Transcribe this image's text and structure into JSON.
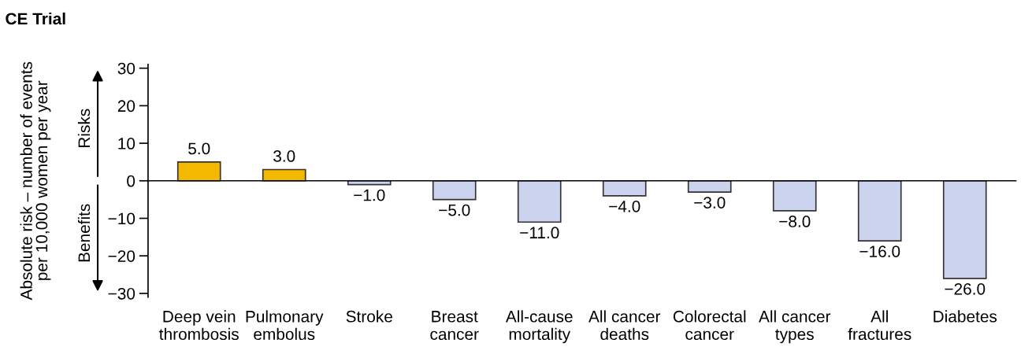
{
  "chart_data": {
    "type": "bar",
    "title": "CE Trial",
    "ylabel": "Absolute risk – number of events\nper 10,000 women per year",
    "categories": [
      "Deep vein\nthrombosis",
      "Pulmonary\nembolus",
      "Stroke",
      "Breast\ncancer",
      "All-cause\nmortality",
      "All cancer\ndeaths",
      "Colorectal\ncancer",
      "All cancer\ntypes",
      "All\nfractures",
      "Diabetes"
    ],
    "values": [
      5.0,
      3.0,
      -1.0,
      -5.0,
      -11.0,
      -4.0,
      -3.0,
      -8.0,
      -16.0,
      -26.0
    ],
    "colors": [
      "#f5b800",
      "#f5b800",
      "#ccd3ee",
      "#ccd3ee",
      "#ccd3ee",
      "#ccd3ee",
      "#ccd3ee",
      "#ccd3ee",
      "#ccd3ee",
      "#ccd3ee"
    ],
    "value_labels": [
      "5.0",
      "3.0",
      "−1.0",
      "−5.0",
      "−11.0",
      "−4.0",
      "−3.0",
      "−8.0",
      "−16.0",
      "−26.0"
    ],
    "annotations": [
      "Risks",
      "Benefits"
    ],
    "ylim": [
      -31,
      31
    ],
    "yticks": [
      -30,
      -20,
      -10,
      0,
      10,
      20,
      30
    ]
  }
}
